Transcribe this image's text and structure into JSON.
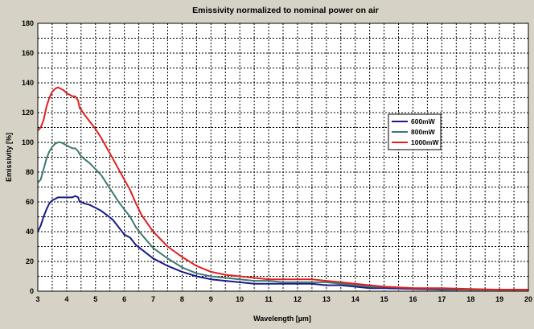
{
  "chart_data": {
    "type": "line",
    "title": "Emissivity normalized to nominal power on air",
    "xlabel": "Wavelength [µm]",
    "ylabel": "Emissivity [%]",
    "xlim": [
      3,
      20
    ],
    "ylim": [
      0,
      180
    ],
    "x_ticks": [
      "3",
      "4",
      "5",
      "6",
      "7",
      "8",
      "9",
      "10",
      "11",
      "12",
      "13",
      "14",
      "15",
      "16",
      "17",
      "18",
      "19",
      "20"
    ],
    "y_ticks": [
      "0",
      "20",
      "40",
      "60",
      "80",
      "100",
      "120",
      "140",
      "160",
      "180"
    ],
    "grid": true,
    "legend_position": "right",
    "series": [
      {
        "name": "600mW",
        "color": "#1a1a8a",
        "points": [
          [
            3.0,
            40
          ],
          [
            3.1,
            44
          ],
          [
            3.2,
            50
          ],
          [
            3.3,
            55
          ],
          [
            3.4,
            59
          ],
          [
            3.5,
            61
          ],
          [
            3.6,
            62
          ],
          [
            3.7,
            63
          ],
          [
            3.8,
            63
          ],
          [
            3.9,
            63
          ],
          [
            4.0,
            63
          ],
          [
            4.1,
            63
          ],
          [
            4.2,
            63
          ],
          [
            4.3,
            64
          ],
          [
            4.4,
            63
          ],
          [
            4.45,
            60
          ],
          [
            4.5,
            60
          ],
          [
            4.6,
            59
          ],
          [
            4.8,
            58
          ],
          [
            5.0,
            56
          ],
          [
            5.2,
            54
          ],
          [
            5.4,
            51
          ],
          [
            5.6,
            48
          ],
          [
            5.8,
            43
          ],
          [
            6.0,
            38
          ],
          [
            6.2,
            36
          ],
          [
            6.4,
            31
          ],
          [
            6.6,
            28
          ],
          [
            7.0,
            22
          ],
          [
            7.5,
            17
          ],
          [
            8.0,
            13
          ],
          [
            8.5,
            10
          ],
          [
            9.0,
            8
          ],
          [
            9.5,
            7
          ],
          [
            10.0,
            6
          ],
          [
            10.5,
            5
          ],
          [
            11.0,
            5
          ],
          [
            11.5,
            5
          ],
          [
            12.0,
            5
          ],
          [
            12.5,
            5
          ],
          [
            13.0,
            4
          ],
          [
            13.5,
            4
          ],
          [
            14.0,
            3
          ],
          [
            14.5,
            2
          ],
          [
            15.0,
            2
          ],
          [
            16.0,
            1.5
          ],
          [
            17.0,
            1
          ],
          [
            18.0,
            1
          ],
          [
            19.0,
            1
          ],
          [
            20.0,
            1
          ]
        ]
      },
      {
        "name": "800mW",
        "color": "#3d7a70",
        "points": [
          [
            3.0,
            73
          ],
          [
            3.1,
            75
          ],
          [
            3.2,
            82
          ],
          [
            3.3,
            89
          ],
          [
            3.4,
            94
          ],
          [
            3.5,
            97
          ],
          [
            3.6,
            99
          ],
          [
            3.7,
            100
          ],
          [
            3.8,
            100
          ],
          [
            3.9,
            99
          ],
          [
            4.0,
            98
          ],
          [
            4.1,
            97
          ],
          [
            4.2,
            96
          ],
          [
            4.3,
            96
          ],
          [
            4.4,
            94
          ],
          [
            4.45,
            92
          ],
          [
            4.5,
            91
          ],
          [
            4.6,
            89
          ],
          [
            4.8,
            86
          ],
          [
            5.0,
            82
          ],
          [
            5.2,
            78
          ],
          [
            5.4,
            72
          ],
          [
            5.6,
            66
          ],
          [
            5.8,
            60
          ],
          [
            6.0,
            55
          ],
          [
            6.2,
            50
          ],
          [
            6.4,
            43
          ],
          [
            6.6,
            38
          ],
          [
            7.0,
            29
          ],
          [
            7.5,
            22
          ],
          [
            8.0,
            16
          ],
          [
            8.5,
            12
          ],
          [
            9.0,
            10
          ],
          [
            9.5,
            9
          ],
          [
            10.0,
            8
          ],
          [
            10.5,
            7
          ],
          [
            11.0,
            7
          ],
          [
            11.5,
            6
          ],
          [
            12.0,
            6
          ],
          [
            12.5,
            6
          ],
          [
            13.0,
            6
          ],
          [
            13.5,
            5
          ],
          [
            14.0,
            4
          ],
          [
            14.5,
            3
          ],
          [
            15.0,
            3
          ],
          [
            16.0,
            2
          ],
          [
            17.0,
            1.5
          ],
          [
            18.0,
            1
          ],
          [
            19.0,
            1
          ],
          [
            20.0,
            1
          ]
        ]
      },
      {
        "name": "1000mW",
        "color": "#e02020",
        "points": [
          [
            3.0,
            108
          ],
          [
            3.1,
            110
          ],
          [
            3.2,
            115
          ],
          [
            3.3,
            124
          ],
          [
            3.4,
            130
          ],
          [
            3.5,
            134
          ],
          [
            3.6,
            136
          ],
          [
            3.7,
            137
          ],
          [
            3.8,
            136
          ],
          [
            3.9,
            135
          ],
          [
            4.0,
            133
          ],
          [
            4.1,
            132
          ],
          [
            4.2,
            131
          ],
          [
            4.3,
            131
          ],
          [
            4.4,
            128
          ],
          [
            4.45,
            123
          ],
          [
            4.5,
            122
          ],
          [
            4.6,
            119
          ],
          [
            4.8,
            114
          ],
          [
            5.0,
            109
          ],
          [
            5.2,
            103
          ],
          [
            5.4,
            96
          ],
          [
            5.6,
            89
          ],
          [
            5.8,
            82
          ],
          [
            6.0,
            75
          ],
          [
            6.2,
            68
          ],
          [
            6.4,
            59
          ],
          [
            6.6,
            51
          ],
          [
            7.0,
            40
          ],
          [
            7.5,
            30
          ],
          [
            8.0,
            23
          ],
          [
            8.5,
            17
          ],
          [
            9.0,
            13
          ],
          [
            9.5,
            11
          ],
          [
            10.0,
            10
          ],
          [
            10.5,
            9
          ],
          [
            11.0,
            8
          ],
          [
            11.5,
            8
          ],
          [
            12.0,
            8
          ],
          [
            12.5,
            8
          ],
          [
            13.0,
            7
          ],
          [
            13.5,
            6
          ],
          [
            14.0,
            5
          ],
          [
            14.5,
            4
          ],
          [
            15.0,
            3
          ],
          [
            16.0,
            2
          ],
          [
            17.0,
            2
          ],
          [
            18.0,
            1.5
          ],
          [
            19.0,
            1
          ],
          [
            20.0,
            1
          ]
        ]
      }
    ]
  }
}
